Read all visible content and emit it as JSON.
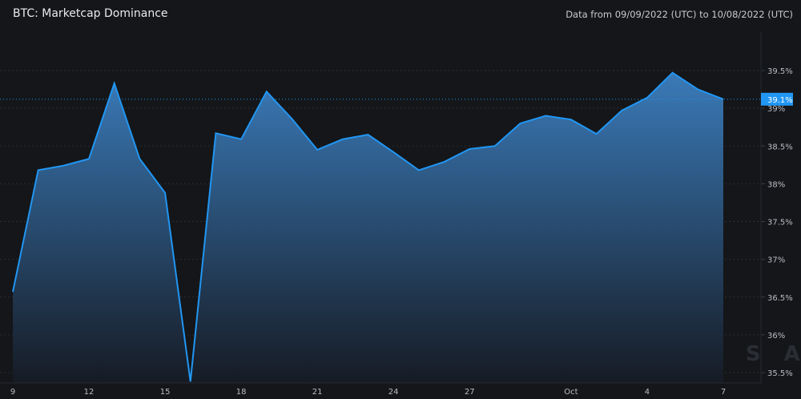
{
  "header": {
    "title": "BTC: Marketcap Dominance",
    "range": "Data from 09/09/2022 (UTC) to 10/08/2022 (UTC)"
  },
  "watermark": "MESSARI",
  "colors": {
    "background": "#141619",
    "line": "#2196f3",
    "fill_top": "#3a7ab8",
    "fill_bottom": "#161b24",
    "last_value_badge": "#2196f3"
  },
  "chart_data": {
    "type": "area",
    "title": "BTC: Marketcap Dominance",
    "x": [
      "2022-09-09",
      "2022-09-10",
      "2022-09-11",
      "2022-09-12",
      "2022-09-13",
      "2022-09-14",
      "2022-09-15",
      "2022-09-16",
      "2022-09-17",
      "2022-09-18",
      "2022-09-19",
      "2022-09-20",
      "2022-09-21",
      "2022-09-22",
      "2022-09-23",
      "2022-09-24",
      "2022-09-25",
      "2022-09-26",
      "2022-09-27",
      "2022-09-28",
      "2022-09-29",
      "2022-09-30",
      "2022-10-01",
      "2022-10-02",
      "2022-10-03",
      "2022-10-04",
      "2022-10-05",
      "2022-10-06",
      "2022-10-07"
    ],
    "values": [
      36.57,
      38.18,
      38.24,
      38.33,
      39.33,
      38.33,
      37.88,
      35.38,
      38.67,
      38.59,
      39.22,
      38.86,
      38.45,
      38.59,
      38.65,
      38.42,
      38.18,
      38.29,
      38.46,
      38.5,
      38.8,
      38.9,
      38.85,
      38.66,
      38.97,
      39.14,
      39.47,
      39.25,
      39.12
    ],
    "x_tick_labels": [
      "9",
      "12",
      "15",
      "18",
      "21",
      "24",
      "27",
      "Oct",
      "4",
      "7"
    ],
    "y_tick_labels": [
      "39.5%",
      "39%",
      "38.5%",
      "38%",
      "37.5%",
      "37%",
      "36.5%",
      "36%",
      "35.5%"
    ],
    "y_ticks": [
      39.5,
      39,
      38.5,
      38,
      37.5,
      37,
      36.5,
      36,
      35.5
    ],
    "ylim": [
      35.5,
      39.5
    ],
    "last_value_label": "39.1%",
    "last_value": 39.12,
    "grid": true,
    "y_axis_position": "right",
    "xlabel": "",
    "ylabel": ""
  }
}
